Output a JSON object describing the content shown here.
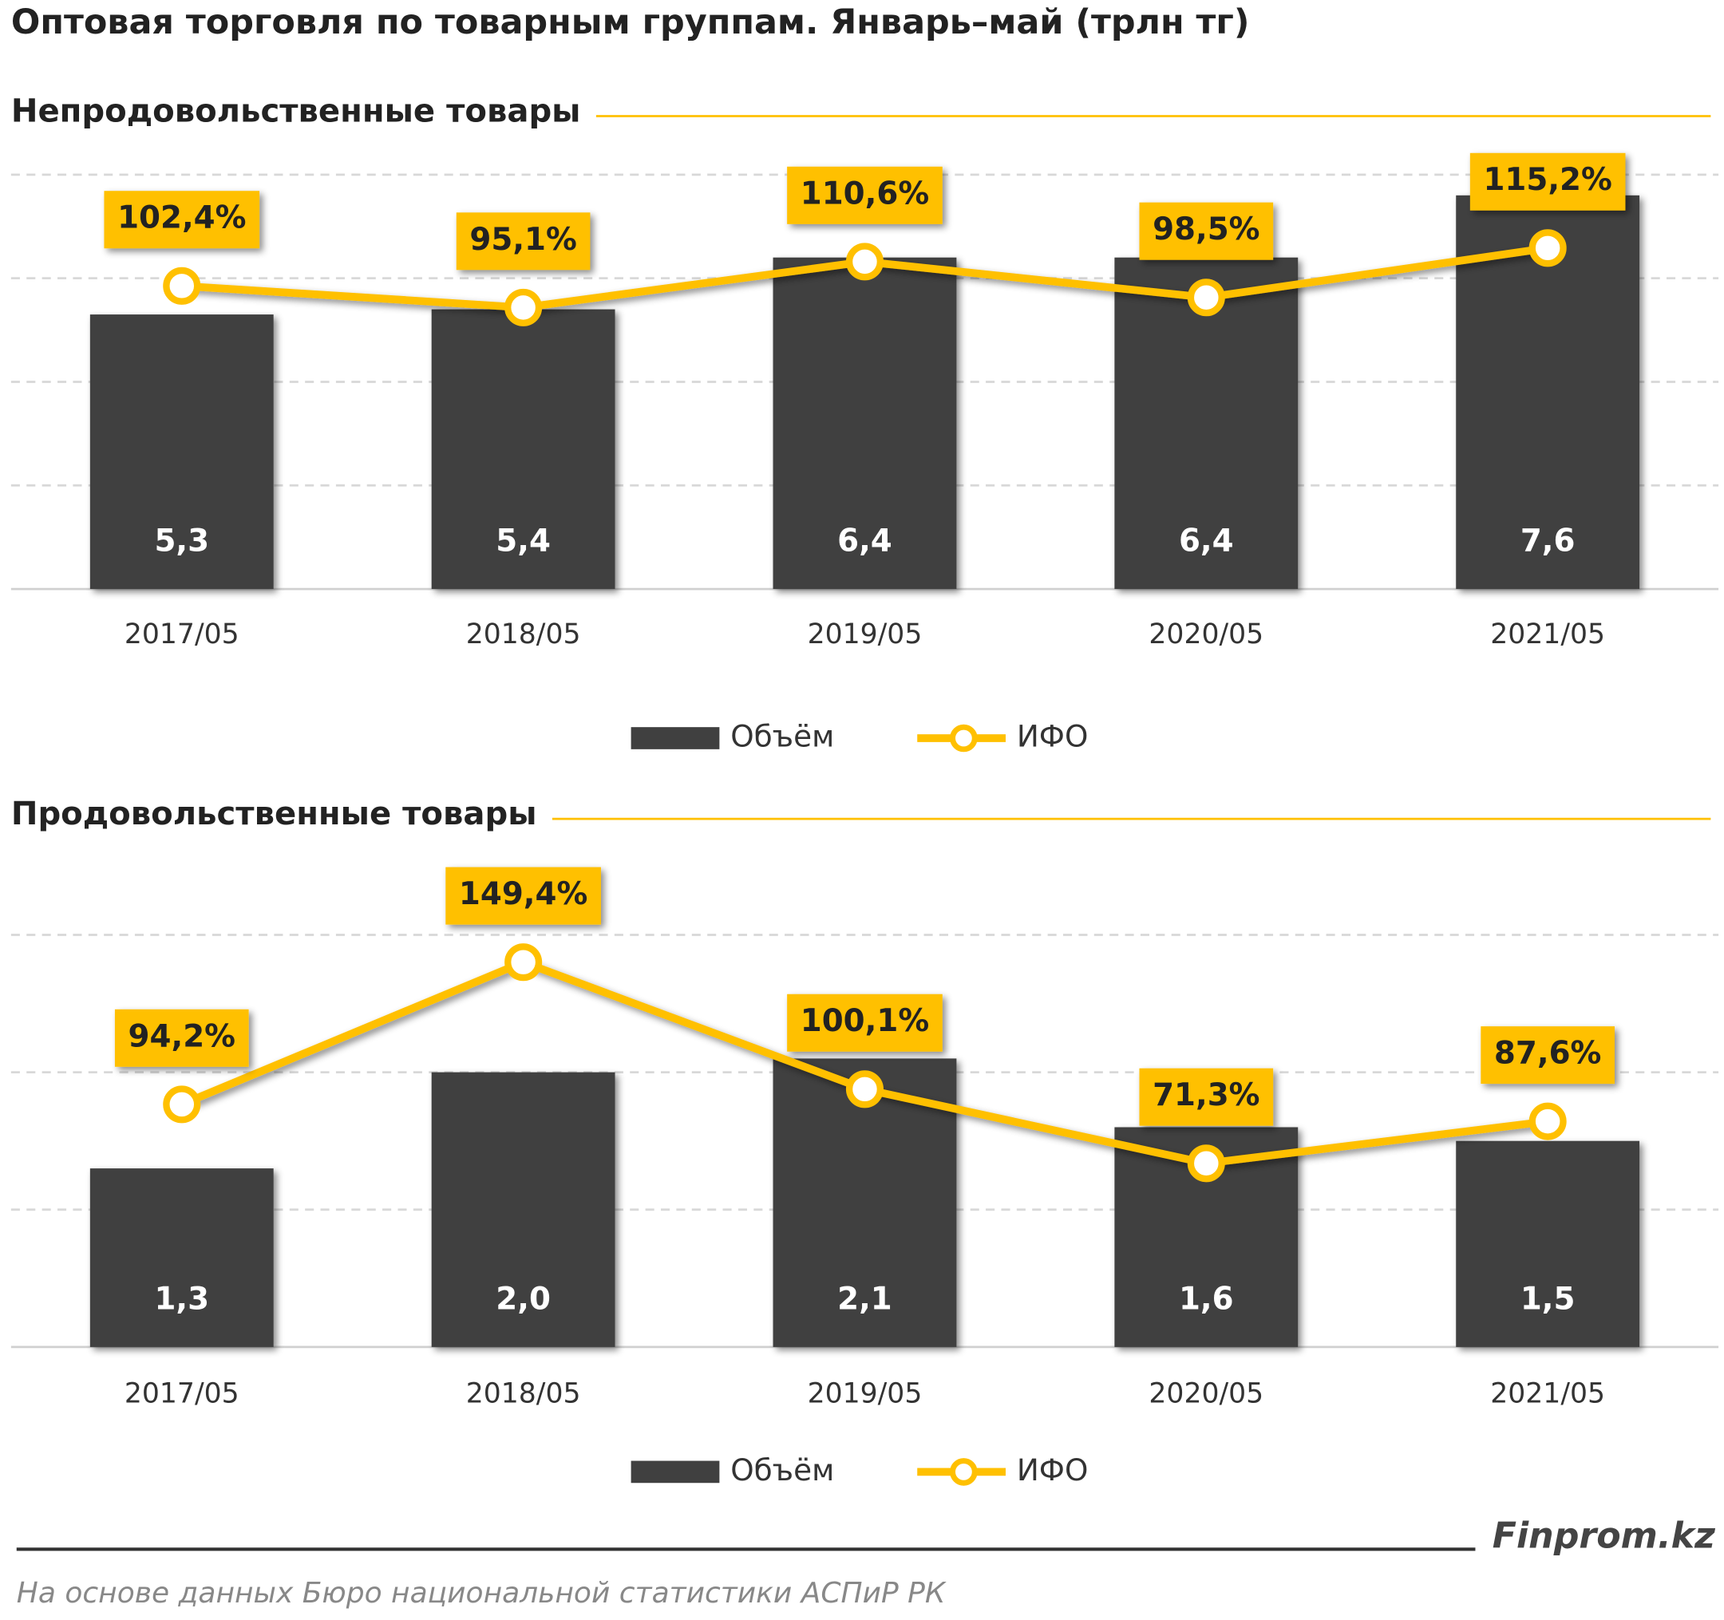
{
  "title": "Оптовая торговля по товарным группам. Январь–май (трлн тг)",
  "chart_data": [
    {
      "type": "combo",
      "title": "Непродовольственные  товары",
      "categories": [
        "2017/05",
        "2018/05",
        "2019/05",
        "2020/05",
        "2021/05"
      ],
      "series": [
        {
          "name": "Объём",
          "type": "bar",
          "color": "#404040",
          "values": [
            5.3,
            5.4,
            6.4,
            6.4,
            7.6
          ],
          "value_labels": [
            "5,3",
            "5,4",
            "6,4",
            "6,4",
            "7,6"
          ]
        },
        {
          "name": "ИФО",
          "type": "line",
          "axis": "y2",
          "color": "#FFC000",
          "values": [
            102.4,
            95.1,
            110.6,
            98.5,
            115.2
          ],
          "value_labels": [
            "102,4%",
            "95,1%",
            "110,6%",
            "98,5%",
            "115,2%"
          ]
        }
      ],
      "ylim": [
        0,
        8
      ],
      "yticks": [
        0,
        2,
        4,
        6,
        8
      ],
      "y2lim": [
        0,
        140
      ],
      "grid": true
    },
    {
      "type": "combo",
      "title": "Продовольственные  товары",
      "categories": [
        "2017/05",
        "2018/05",
        "2019/05",
        "2020/05",
        "2021/05"
      ],
      "series": [
        {
          "name": "Объём",
          "type": "bar",
          "color": "#404040",
          "values": [
            1.3,
            2.0,
            2.1,
            1.6,
            1.5
          ],
          "value_labels": [
            "1,3",
            "2,0",
            "2,1",
            "1,6",
            "1,5"
          ]
        },
        {
          "name": "ИФО",
          "type": "line",
          "axis": "y2",
          "color": "#FFC000",
          "values": [
            94.2,
            149.4,
            100.1,
            71.3,
            87.6
          ],
          "value_labels": [
            "94,2%",
            "149,4%",
            "100,1%",
            "71,3%",
            "87,6%"
          ]
        }
      ],
      "ylim": [
        0,
        3
      ],
      "yticks": [
        0,
        1,
        2,
        3
      ],
      "y2lim": [
        0,
        160
      ],
      "grid": true
    }
  ],
  "brand": "Finprom.kz",
  "source": "На основе данных Бюро национальной статистики АСПиР РК"
}
